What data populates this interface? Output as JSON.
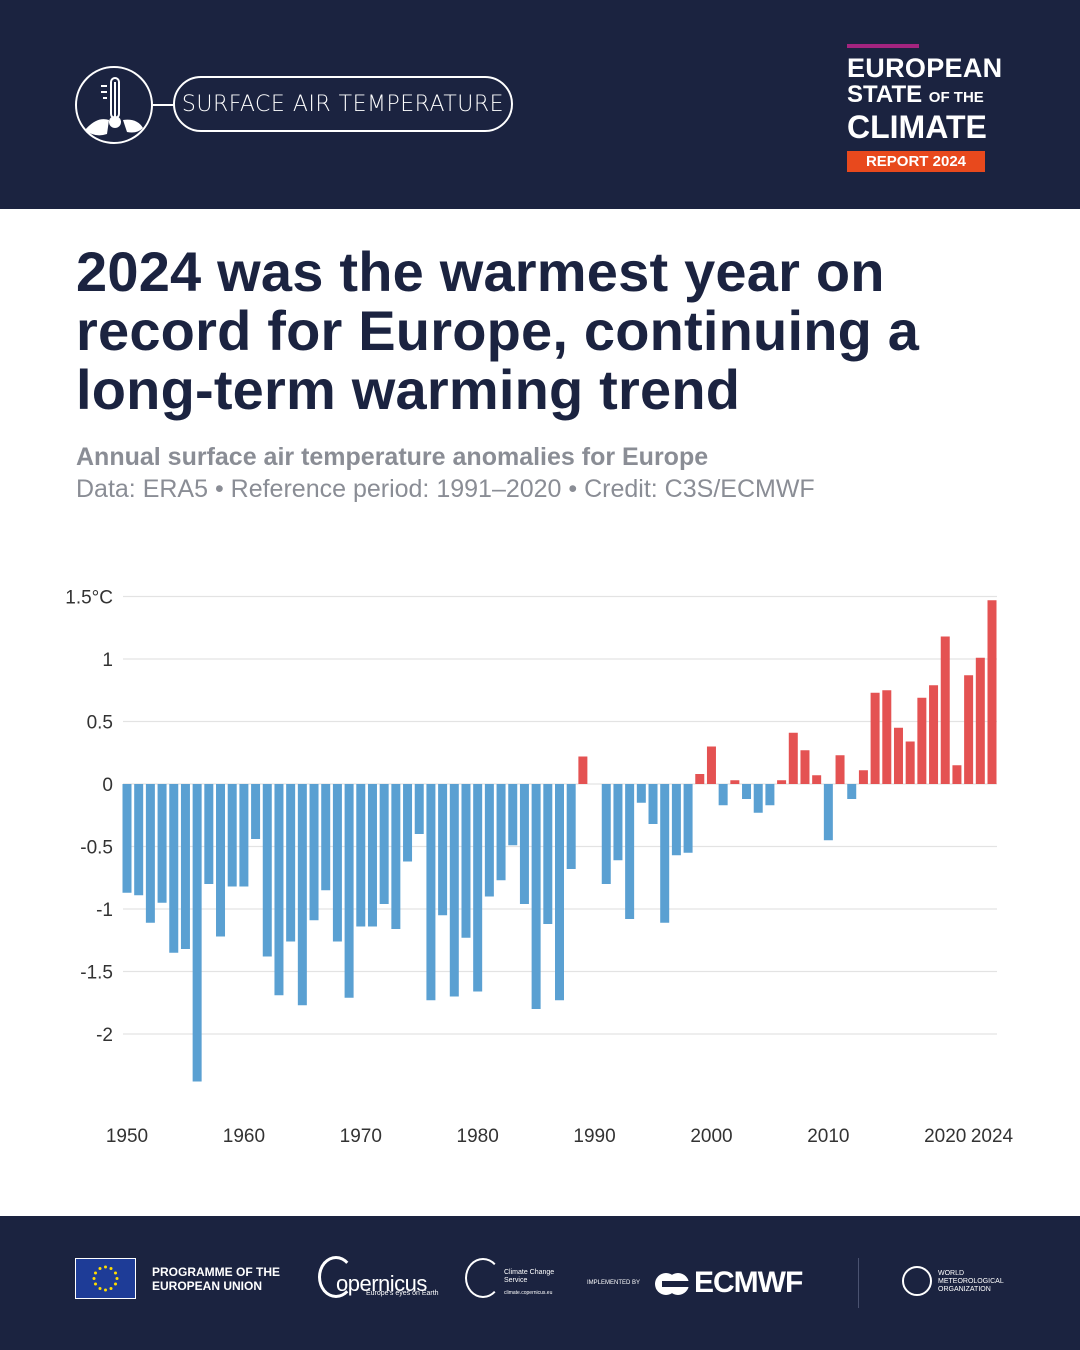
{
  "header": {
    "section_label": "SURFACE AIR TEMPERATURE",
    "report_logo": {
      "line1": "EUROPEAN",
      "line2_big": "STATE",
      "line2_small": "OF THE",
      "line3": "CLIMATE",
      "badge": "REPORT 2024"
    }
  },
  "title": "2024 was the warmest year on record for Europe, continuing a long-term warming trend",
  "subtitle": "Annual surface air temperature anomalies for Europe",
  "credit": "Data: ERA5 • Reference period: 1991–2020 • Credit: C3S/ECMWF",
  "colors": {
    "background_dark": "#1b2340",
    "negative": "#5aa0d2",
    "positive": "#e45252",
    "badge": "#e8491d"
  },
  "chart_data": {
    "type": "bar",
    "ylabel": "",
    "xlabel": "",
    "ylim": [
      -2.5,
      1.5
    ],
    "grid": true,
    "y_ticks": [
      {
        "v": 1.5,
        "label": "1.5°C"
      },
      {
        "v": 1,
        "label": "1"
      },
      {
        "v": 0.5,
        "label": "0.5"
      },
      {
        "v": 0,
        "label": "0"
      },
      {
        "v": -0.5,
        "label": "-0.5"
      },
      {
        "v": -1,
        "label": "-1"
      },
      {
        "v": -1.5,
        "label": "-1.5"
      },
      {
        "v": -2,
        "label": "-2"
      }
    ],
    "x_ticks": [
      "1950",
      "1960",
      "1970",
      "1980",
      "1990",
      "2000",
      "2010",
      "2020",
      "2024"
    ],
    "years": [
      1950,
      1951,
      1952,
      1953,
      1954,
      1955,
      1956,
      1957,
      1958,
      1959,
      1960,
      1961,
      1962,
      1963,
      1964,
      1965,
      1966,
      1967,
      1968,
      1969,
      1970,
      1971,
      1972,
      1973,
      1974,
      1975,
      1976,
      1977,
      1978,
      1979,
      1980,
      1981,
      1982,
      1983,
      1984,
      1985,
      1986,
      1987,
      1988,
      1989,
      1990,
      1991,
      1992,
      1993,
      1994,
      1995,
      1996,
      1997,
      1998,
      1999,
      2000,
      2001,
      2002,
      2003,
      2004,
      2005,
      2006,
      2007,
      2008,
      2009,
      2010,
      2011,
      2012,
      2013,
      2014,
      2015,
      2016,
      2017,
      2018,
      2019,
      2020,
      2021,
      2022,
      2023,
      2024
    ],
    "values": [
      -0.87,
      -0.89,
      -1.11,
      -0.95,
      -1.35,
      -1.32,
      -2.38,
      -0.8,
      -1.22,
      -0.82,
      -0.82,
      -0.44,
      -1.38,
      -1.69,
      -1.26,
      -1.77,
      -1.09,
      -0.85,
      -1.26,
      -1.71,
      -1.14,
      -1.14,
      -0.96,
      -1.16,
      -0.62,
      -0.4,
      -1.73,
      -1.05,
      -1.7,
      -1.23,
      -1.66,
      -0.9,
      -0.77,
      -0.49,
      -0.96,
      -1.8,
      -1.12,
      -1.73,
      -0.68,
      0.22,
      0.0,
      -0.8,
      -0.61,
      -1.08,
      -0.15,
      -0.32,
      -1.11,
      -0.57,
      -0.55,
      0.08,
      0.3,
      -0.17,
      0.03,
      -0.12,
      -0.23,
      -0.17,
      0.03,
      0.41,
      0.27,
      0.07,
      -0.45,
      0.23,
      -0.12,
      0.11,
      0.73,
      0.75,
      0.45,
      0.34,
      0.69,
      0.79,
      1.18,
      0.15,
      0.87,
      1.01,
      1.47
    ]
  },
  "footer": {
    "eu": "PROGRAMME OF THE EUROPEAN UNION",
    "copernicus": "opernicus",
    "copernicus_tag": "Europe's eyes on Earth",
    "c3s": "Climate Change Service",
    "c3s_url": "climate.copernicus.eu",
    "implemented": "IMPLEMENTED BY",
    "ecmwf": "ECMWF",
    "wmo": "WORLD METEOROLOGICAL ORGANIZATION"
  }
}
